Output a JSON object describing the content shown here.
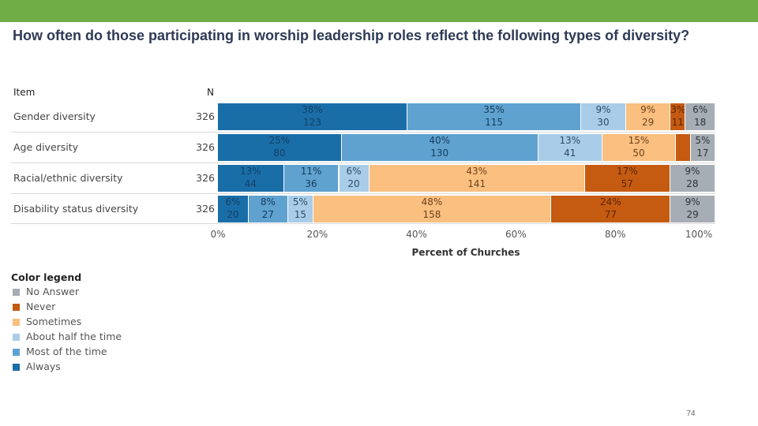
{
  "slide": {
    "title": "How often do those participating in worship leadership roles reflect the following types of diversity?",
    "page_number": "74",
    "accent_color": "#70ad47"
  },
  "chart_data": {
    "type": "bar",
    "orientation": "horizontal-stacked-100",
    "xlabel": "Percent of Churches",
    "column_headers": {
      "item": "Item",
      "n": "N"
    },
    "ticks": [
      "0%",
      "20%",
      "40%",
      "60%",
      "80%",
      "100%"
    ],
    "xlim": [
      0,
      100
    ],
    "categories": [
      "Always",
      "Most of the time",
      "About half the time",
      "Sometimes",
      "Never",
      "No Answer"
    ],
    "colors": {
      "Always": "#1a6ea8",
      "Most of the time": "#5fa2d0",
      "About half the time": "#a9cde8",
      "Sometimes": "#fbbf7f",
      "Never": "#c55a11",
      "No Answer": "#a6adb5"
    },
    "rows": [
      {
        "item": "Gender diversity",
        "n": "326",
        "values": [
          38,
          35,
          9,
          9,
          3,
          6
        ],
        "pct_labels": [
          "38%",
          "35%",
          "9%",
          "9%",
          "3%",
          "6%"
        ],
        "count_labels": [
          "123",
          "115",
          "30",
          "29",
          "11",
          "18"
        ]
      },
      {
        "item": "Age diversity",
        "n": "326",
        "values": [
          25,
          40,
          13,
          15,
          3,
          5
        ],
        "pct_labels": [
          "25%",
          "40%",
          "13%",
          "15%",
          "",
          "5%"
        ],
        "count_labels": [
          "80",
          "130",
          "41",
          "50",
          "",
          "17"
        ]
      },
      {
        "item": "Racial/ethnic diversity",
        "n": "326",
        "values": [
          13,
          11,
          6,
          43,
          17,
          9
        ],
        "pct_labels": [
          "13%",
          "11%",
          "6%",
          "43%",
          "17%",
          "9%"
        ],
        "count_labels": [
          "44",
          "36",
          "20",
          "141",
          "57",
          "28"
        ]
      },
      {
        "item": "Disability status diversity",
        "n": "326",
        "values": [
          6,
          8,
          5,
          48,
          24,
          9
        ],
        "pct_labels": [
          "6%",
          "8%",
          "5%",
          "48%",
          "24%",
          "9%"
        ],
        "count_labels": [
          "20",
          "27",
          "15",
          "158",
          "77",
          "29"
        ]
      }
    ],
    "legend": {
      "title": "Color legend",
      "items": [
        "No Answer",
        "Never",
        "Sometimes",
        "About half the time",
        "Most of the time",
        "Always"
      ]
    }
  }
}
